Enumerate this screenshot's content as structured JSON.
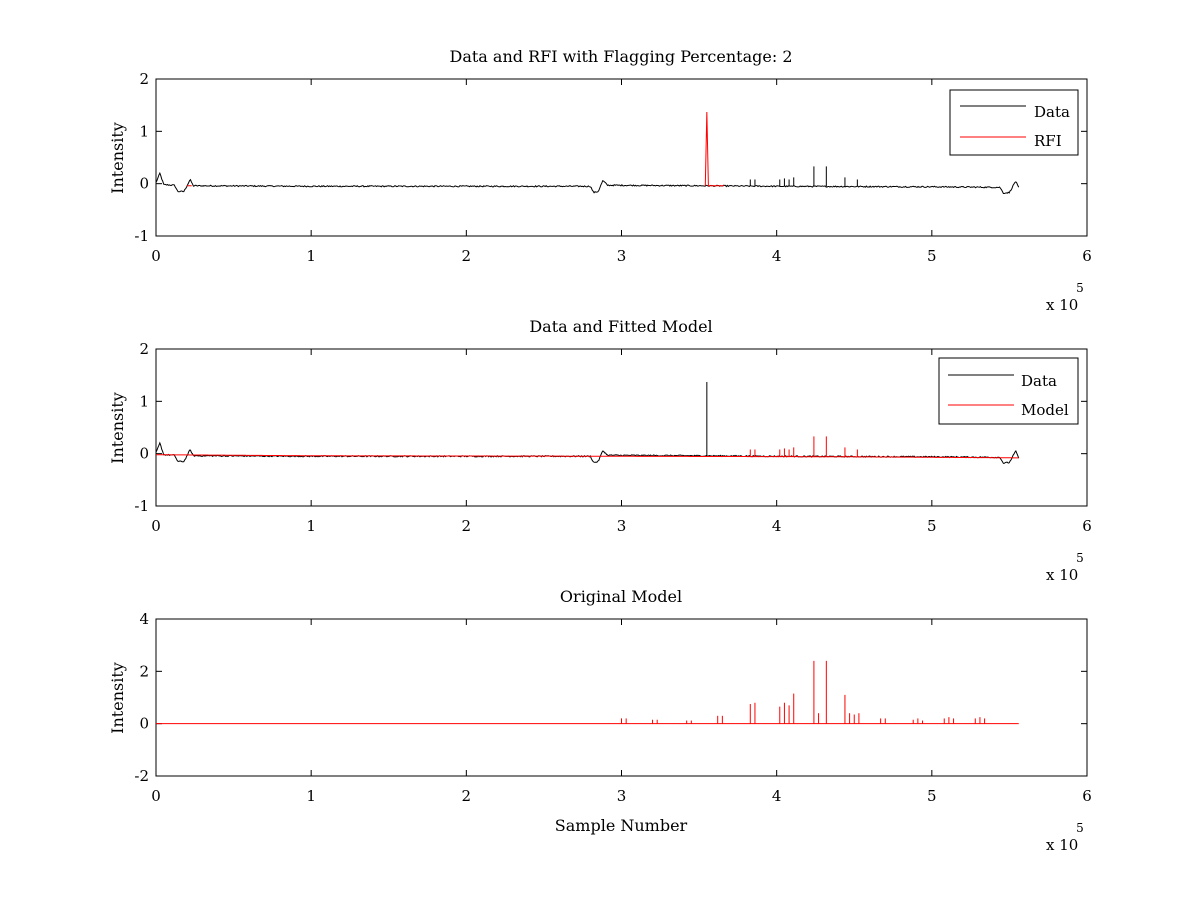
{
  "chart_data": [
    {
      "type": "line",
      "title": "Data and RFI with Flagging Percentage: 2",
      "xlabel": "",
      "ylabel": "Intensity",
      "xlim": [
        0,
        600000
      ],
      "ylim": [
        -1,
        2
      ],
      "xticks": [
        0,
        100000,
        200000,
        300000,
        400000,
        500000,
        600000
      ],
      "xtick_labels": [
        "0",
        "1",
        "2",
        "3",
        "4",
        "5",
        "6"
      ],
      "yticks": [
        -1,
        0,
        1,
        2
      ],
      "ytick_labels": [
        "-1",
        "0",
        "1",
        "2"
      ],
      "x_exponent": "x 10",
      "x_exponent_power": "5",
      "legend": {
        "position": "top-right",
        "entries": [
          "Data",
          "RFI"
        ]
      },
      "series": [
        {
          "name": "Data",
          "color": "#000000",
          "style": "baseline",
          "baseline": [
            [
              0,
              0.02
            ],
            [
              2500,
              0.2
            ],
            [
              5000,
              -0.02
            ],
            [
              12000,
              -0.03
            ],
            [
              14000,
              -0.15
            ],
            [
              18000,
              -0.15
            ],
            [
              20000,
              -0.04
            ],
            [
              22000,
              0.08
            ],
            [
              24000,
              -0.04
            ],
            [
              100000,
              -0.05
            ],
            [
              200000,
              -0.05
            ],
            [
              280000,
              -0.05
            ],
            [
              282000,
              -0.17
            ],
            [
              285000,
              -0.15
            ],
            [
              288000,
              0.06
            ],
            [
              291000,
              -0.03
            ],
            [
              350000,
              -0.04
            ],
            [
              400000,
              -0.05
            ],
            [
              500000,
              -0.06
            ],
            [
              544000,
              -0.07
            ],
            [
              546000,
              -0.18
            ],
            [
              550000,
              -0.17
            ],
            [
              554000,
              0.05
            ],
            [
              556000,
              -0.08
            ]
          ],
          "noise": 0.012,
          "spikes": [
            [
              383000,
              0.08
            ],
            [
              386000,
              0.08
            ],
            [
              402000,
              0.08
            ],
            [
              405000,
              0.1
            ],
            [
              408000,
              0.08
            ],
            [
              411000,
              0.12
            ],
            [
              424000,
              0.33
            ],
            [
              432000,
              0.33
            ],
            [
              444000,
              0.12
            ],
            [
              452000,
              0.08
            ]
          ]
        },
        {
          "name": "RFI",
          "color": "#ff0000",
          "style": "segments",
          "segments": [
            [
              [
                354000,
                -0.04
              ],
              [
                355000,
                1.37
              ],
              [
                356000,
                -0.04
              ],
              [
                366000,
                -0.04
              ]
            ],
            [
              [
                20000,
                -0.04
              ],
              [
                23000,
                -0.04
              ]
            ]
          ]
        }
      ]
    },
    {
      "type": "line",
      "title": "Data and Fitted Model",
      "xlabel": "",
      "ylabel": "Intensity",
      "xlim": [
        0,
        600000
      ],
      "ylim": [
        -1,
        2
      ],
      "xticks": [
        0,
        100000,
        200000,
        300000,
        400000,
        500000,
        600000
      ],
      "xtick_labels": [
        "0",
        "1",
        "2",
        "3",
        "4",
        "5",
        "6"
      ],
      "yticks": [
        -1,
        0,
        1,
        2
      ],
      "ytick_labels": [
        "-1",
        "0",
        "1",
        "2"
      ],
      "x_exponent": "x 10",
      "x_exponent_power": "5",
      "legend": {
        "position": "top-right",
        "entries": [
          "Data",
          "Model"
        ]
      },
      "series": [
        {
          "name": "Data",
          "color": "#000000",
          "style": "baseline",
          "baseline": [
            [
              0,
              0.02
            ],
            [
              2500,
              0.2
            ],
            [
              5000,
              -0.02
            ],
            [
              12000,
              -0.03
            ],
            [
              14000,
              -0.15
            ],
            [
              18000,
              -0.15
            ],
            [
              20000,
              -0.04
            ],
            [
              22000,
              0.08
            ],
            [
              24000,
              -0.04
            ],
            [
              100000,
              -0.05
            ],
            [
              200000,
              -0.05
            ],
            [
              280000,
              -0.05
            ],
            [
              282000,
              -0.17
            ],
            [
              285000,
              -0.15
            ],
            [
              288000,
              0.06
            ],
            [
              291000,
              -0.03
            ],
            [
              350000,
              -0.04
            ],
            [
              400000,
              -0.05
            ],
            [
              500000,
              -0.06
            ],
            [
              544000,
              -0.07
            ],
            [
              546000,
              -0.18
            ],
            [
              550000,
              -0.17
            ],
            [
              554000,
              0.05
            ],
            [
              556000,
              -0.08
            ]
          ],
          "noise": 0.012,
          "spikes": [
            [
              355000,
              1.37
            ]
          ]
        },
        {
          "name": "Model",
          "color": "#ff0000",
          "style": "baseline",
          "baseline": [
            [
              0,
              -0.02
            ],
            [
              100000,
              -0.04
            ],
            [
              300000,
              -0.05
            ],
            [
              450000,
              -0.06
            ],
            [
              556000,
              -0.08
            ]
          ],
          "noise": 0,
          "spikes": [
            [
              383000,
              0.08
            ],
            [
              386000,
              0.08
            ],
            [
              402000,
              0.08
            ],
            [
              405000,
              0.1
            ],
            [
              408000,
              0.08
            ],
            [
              411000,
              0.12
            ],
            [
              424000,
              0.33
            ],
            [
              432000,
              0.33
            ],
            [
              444000,
              0.12
            ],
            [
              452000,
              0.08
            ]
          ]
        }
      ]
    },
    {
      "type": "line",
      "title": "Original Model",
      "xlabel": "Sample Number",
      "ylabel": "Intensity",
      "xlim": [
        0,
        600000
      ],
      "ylim": [
        -2,
        4
      ],
      "xticks": [
        0,
        100000,
        200000,
        300000,
        400000,
        500000,
        600000
      ],
      "xtick_labels": [
        "0",
        "1",
        "2",
        "3",
        "4",
        "5",
        "6"
      ],
      "yticks": [
        -2,
        0,
        2,
        4
      ],
      "ytick_labels": [
        "-2",
        "0",
        "2",
        "4"
      ],
      "x_exponent": "x 10",
      "x_exponent_power": "5",
      "legend": null,
      "series": [
        {
          "name": "",
          "color": "#ff0000",
          "style": "baseline",
          "baseline": [
            [
              0,
              0
            ],
            [
              556000,
              0
            ]
          ],
          "noise": 0,
          "spikes": [
            [
              300000,
              0.2
            ],
            [
              303000,
              0.2
            ],
            [
              320000,
              0.15
            ],
            [
              323000,
              0.15
            ],
            [
              342000,
              0.12
            ],
            [
              345000,
              0.12
            ],
            [
              362000,
              0.3
            ],
            [
              365000,
              0.3
            ],
            [
              383000,
              0.75
            ],
            [
              386000,
              0.8
            ],
            [
              402000,
              0.65
            ],
            [
              405000,
              0.8
            ],
            [
              408000,
              0.7
            ],
            [
              411000,
              1.15
            ],
            [
              424000,
              2.4
            ],
            [
              427000,
              0.4
            ],
            [
              432000,
              2.4
            ],
            [
              444000,
              1.1
            ],
            [
              447000,
              0.4
            ],
            [
              450000,
              0.35
            ],
            [
              453000,
              0.4
            ],
            [
              467000,
              0.2
            ],
            [
              470000,
              0.2
            ],
            [
              488000,
              0.15
            ],
            [
              491000,
              0.2
            ],
            [
              494000,
              0.12
            ],
            [
              508000,
              0.2
            ],
            [
              511000,
              0.25
            ],
            [
              514000,
              0.2
            ],
            [
              528000,
              0.2
            ],
            [
              531000,
              0.25
            ],
            [
              534000,
              0.2
            ]
          ]
        }
      ]
    }
  ]
}
